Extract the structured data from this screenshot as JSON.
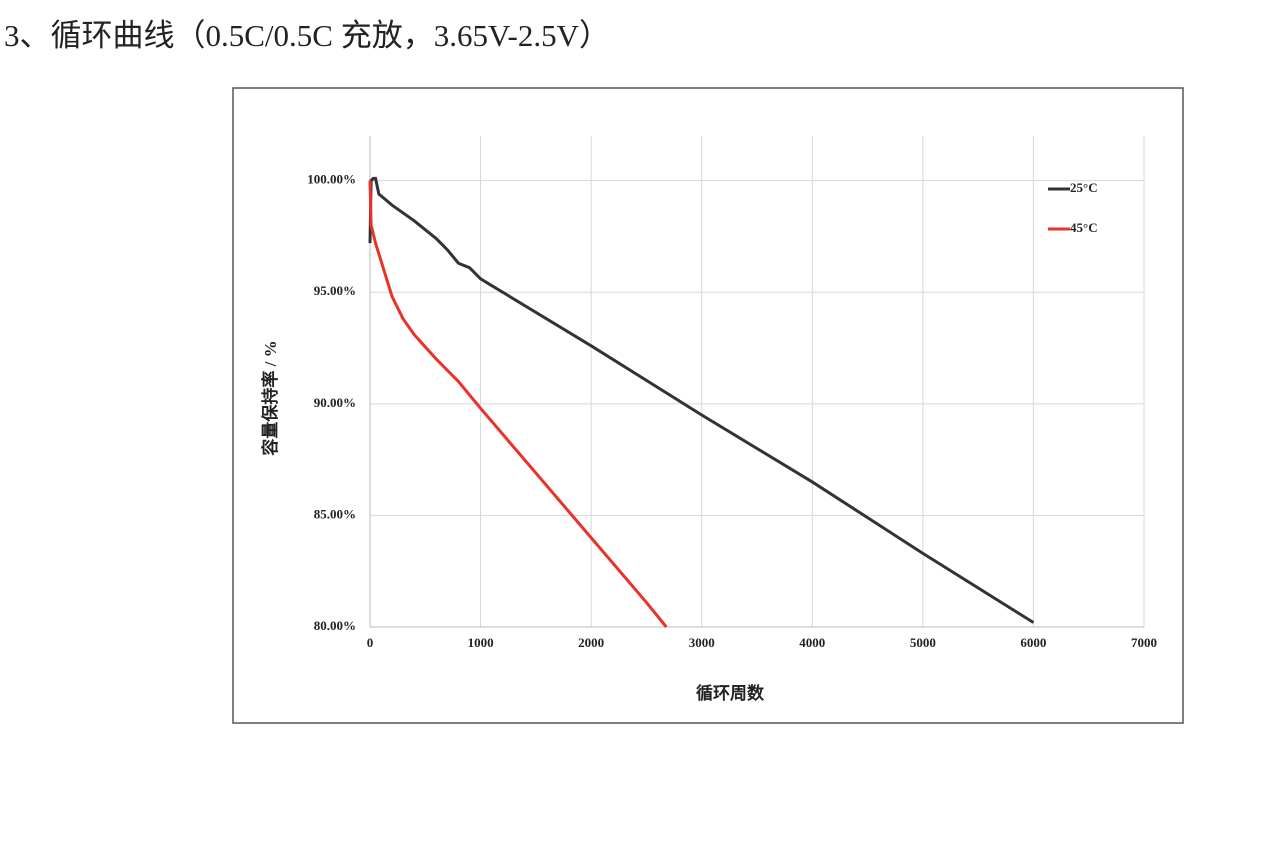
{
  "heading": "3、循环曲线（0.5C/0.5C 充放，3.65V-2.5V）",
  "chart_data": {
    "type": "line",
    "xlabel": "循环周数",
    "ylabel": "容量保持率 / %",
    "xlim": [
      0,
      7000
    ],
    "xticks": [
      0,
      1000,
      2000,
      3000,
      4000,
      5000,
      6000,
      7000
    ],
    "ylim": [
      80,
      102
    ],
    "yticks": [
      {
        "value": 80,
        "label": "80.00%"
      },
      {
        "value": 85,
        "label": "85.00%"
      },
      {
        "value": 90,
        "label": "90.00%"
      },
      {
        "value": 95,
        "label": "95.00%"
      },
      {
        "value": 100,
        "label": "100.00%"
      }
    ],
    "grid": true,
    "legend": "upper right",
    "series": [
      {
        "name": "25°C",
        "color": "#333333",
        "x": [
          0,
          10,
          30,
          50,
          80,
          200,
          400,
          600,
          700,
          800,
          900,
          1000,
          1100,
          2000,
          3000,
          4000,
          5000,
          6000
        ],
        "values": [
          97.2,
          100,
          100.1,
          100.1,
          99.4,
          98.9,
          98.2,
          97.4,
          96.9,
          96.3,
          96.1,
          95.6,
          95.3,
          92.6,
          89.5,
          86.5,
          83.3,
          80.2
        ]
      },
      {
        "name": "45°C",
        "color": "#e8322a",
        "x": [
          0,
          10,
          50,
          100,
          200,
          300,
          400,
          600,
          800,
          1000,
          1500,
          2000,
          2500,
          2680
        ],
        "values": [
          100,
          98,
          97.2,
          96.4,
          94.8,
          93.8,
          93.1,
          92.0,
          91.0,
          89.8,
          86.9,
          84.0,
          81.1,
          80.0
        ]
      }
    ]
  }
}
